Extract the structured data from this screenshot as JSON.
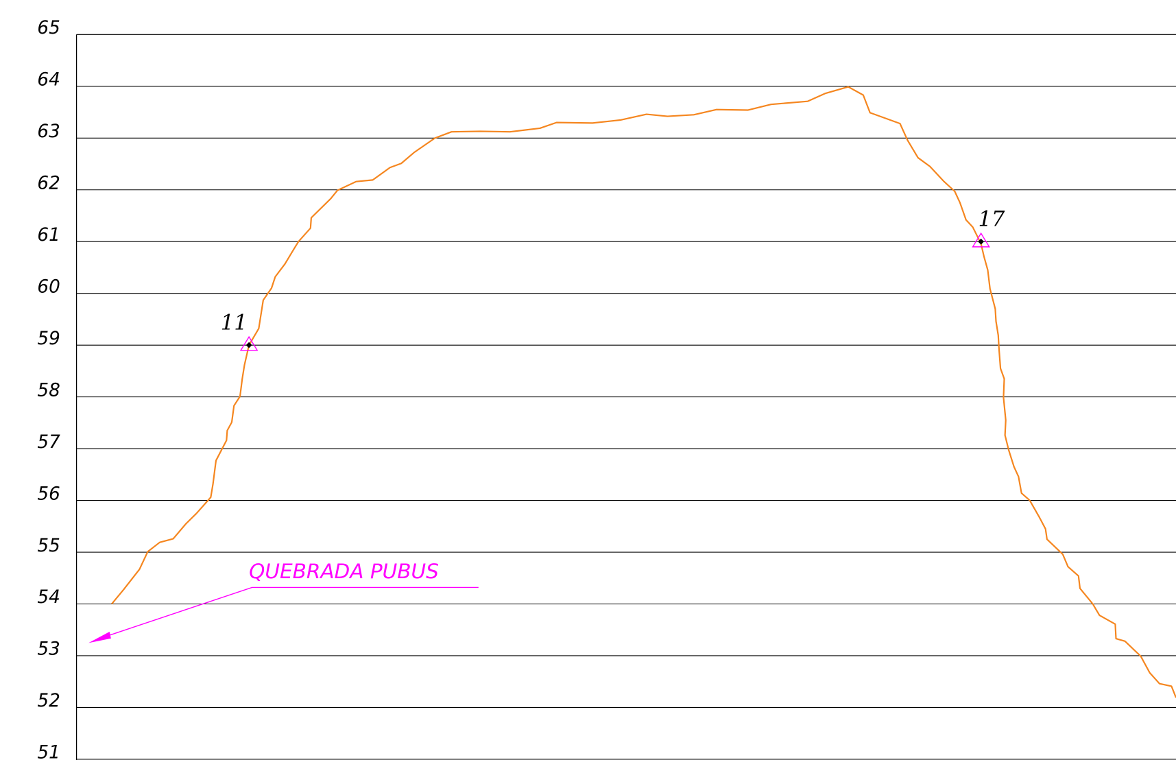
{
  "chart_data": {
    "type": "line",
    "annotation": "QUEBRADA  PUBUS",
    "xlim": [
      0,
      1466
    ],
    "ylim": [
      51,
      65
    ],
    "yticks": [
      51,
      52,
      53,
      54,
      55,
      56,
      57,
      58,
      59,
      60,
      61,
      62,
      63,
      64,
      65
    ],
    "grid": true,
    "series": [
      {
        "color": "#f5861f",
        "x": [
          47,
          63,
          84,
          95,
          111,
          129,
          146,
          160,
          179,
          182,
          186,
          200,
          201,
          207,
          210,
          218,
          221,
          224,
          230,
          243,
          249,
          260,
          265,
          278,
          290,
          296,
          312,
          313,
          339,
          348,
          373,
          395,
          418,
          433,
          450,
          478,
          500,
          538,
          578,
          618,
          640,
          688,
          726,
          760,
          788,
          823,
          853,
          895,
          926,
          975,
          998,
          1029,
          1049,
          1058,
          1098,
          1108,
          1122,
          1138,
          1156,
          1171,
          1178,
          1186,
          1195,
          1206,
          1210,
          1215,
          1218,
          1225,
          1226,
          1229,
          1230,
          1232,
          1237,
          1236,
          1239,
          1238,
          1243,
          1250,
          1256,
          1260,
          1271,
          1284,
          1292,
          1294,
          1315,
          1322,
          1336,
          1338,
          1355,
          1364,
          1385,
          1386,
          1398,
          1419,
          1431,
          1444,
          1460,
          1466
        ],
        "values": [
          54.0,
          54.28,
          54.67,
          55.01,
          55.19,
          55.26,
          55.55,
          55.75,
          56.06,
          56.32,
          56.77,
          57.16,
          57.35,
          57.51,
          57.83,
          58.01,
          58.35,
          58.62,
          59.0,
          59.32,
          59.87,
          60.1,
          60.32,
          60.57,
          60.86,
          61.0,
          61.26,
          61.46,
          61.83,
          61.99,
          62.16,
          62.19,
          62.43,
          62.51,
          62.72,
          63.0,
          63.12,
          63.13,
          63.12,
          63.19,
          63.3,
          63.29,
          63.35,
          63.46,
          63.42,
          63.45,
          63.55,
          63.54,
          63.65,
          63.71,
          63.86,
          63.99,
          63.83,
          63.49,
          63.28,
          62.96,
          62.62,
          62.45,
          62.17,
          61.97,
          61.75,
          61.42,
          61.28,
          60.96,
          60.71,
          60.45,
          60.09,
          59.7,
          59.46,
          59.19,
          58.93,
          58.55,
          58.35,
          57.99,
          57.55,
          57.26,
          56.97,
          56.65,
          56.46,
          56.14,
          56.0,
          55.67,
          55.45,
          55.25,
          54.96,
          54.72,
          54.54,
          54.3,
          54.0,
          53.78,
          53.61,
          53.33,
          53.28,
          52.99,
          52.67,
          52.46,
          52.41,
          52.19
        ]
      }
    ],
    "points": [
      {
        "label": "11",
        "x": 230,
        "y": 59
      },
      {
        "label": "17",
        "x": 1206,
        "y": 61
      }
    ],
    "point_color": "#ff00ff"
  }
}
